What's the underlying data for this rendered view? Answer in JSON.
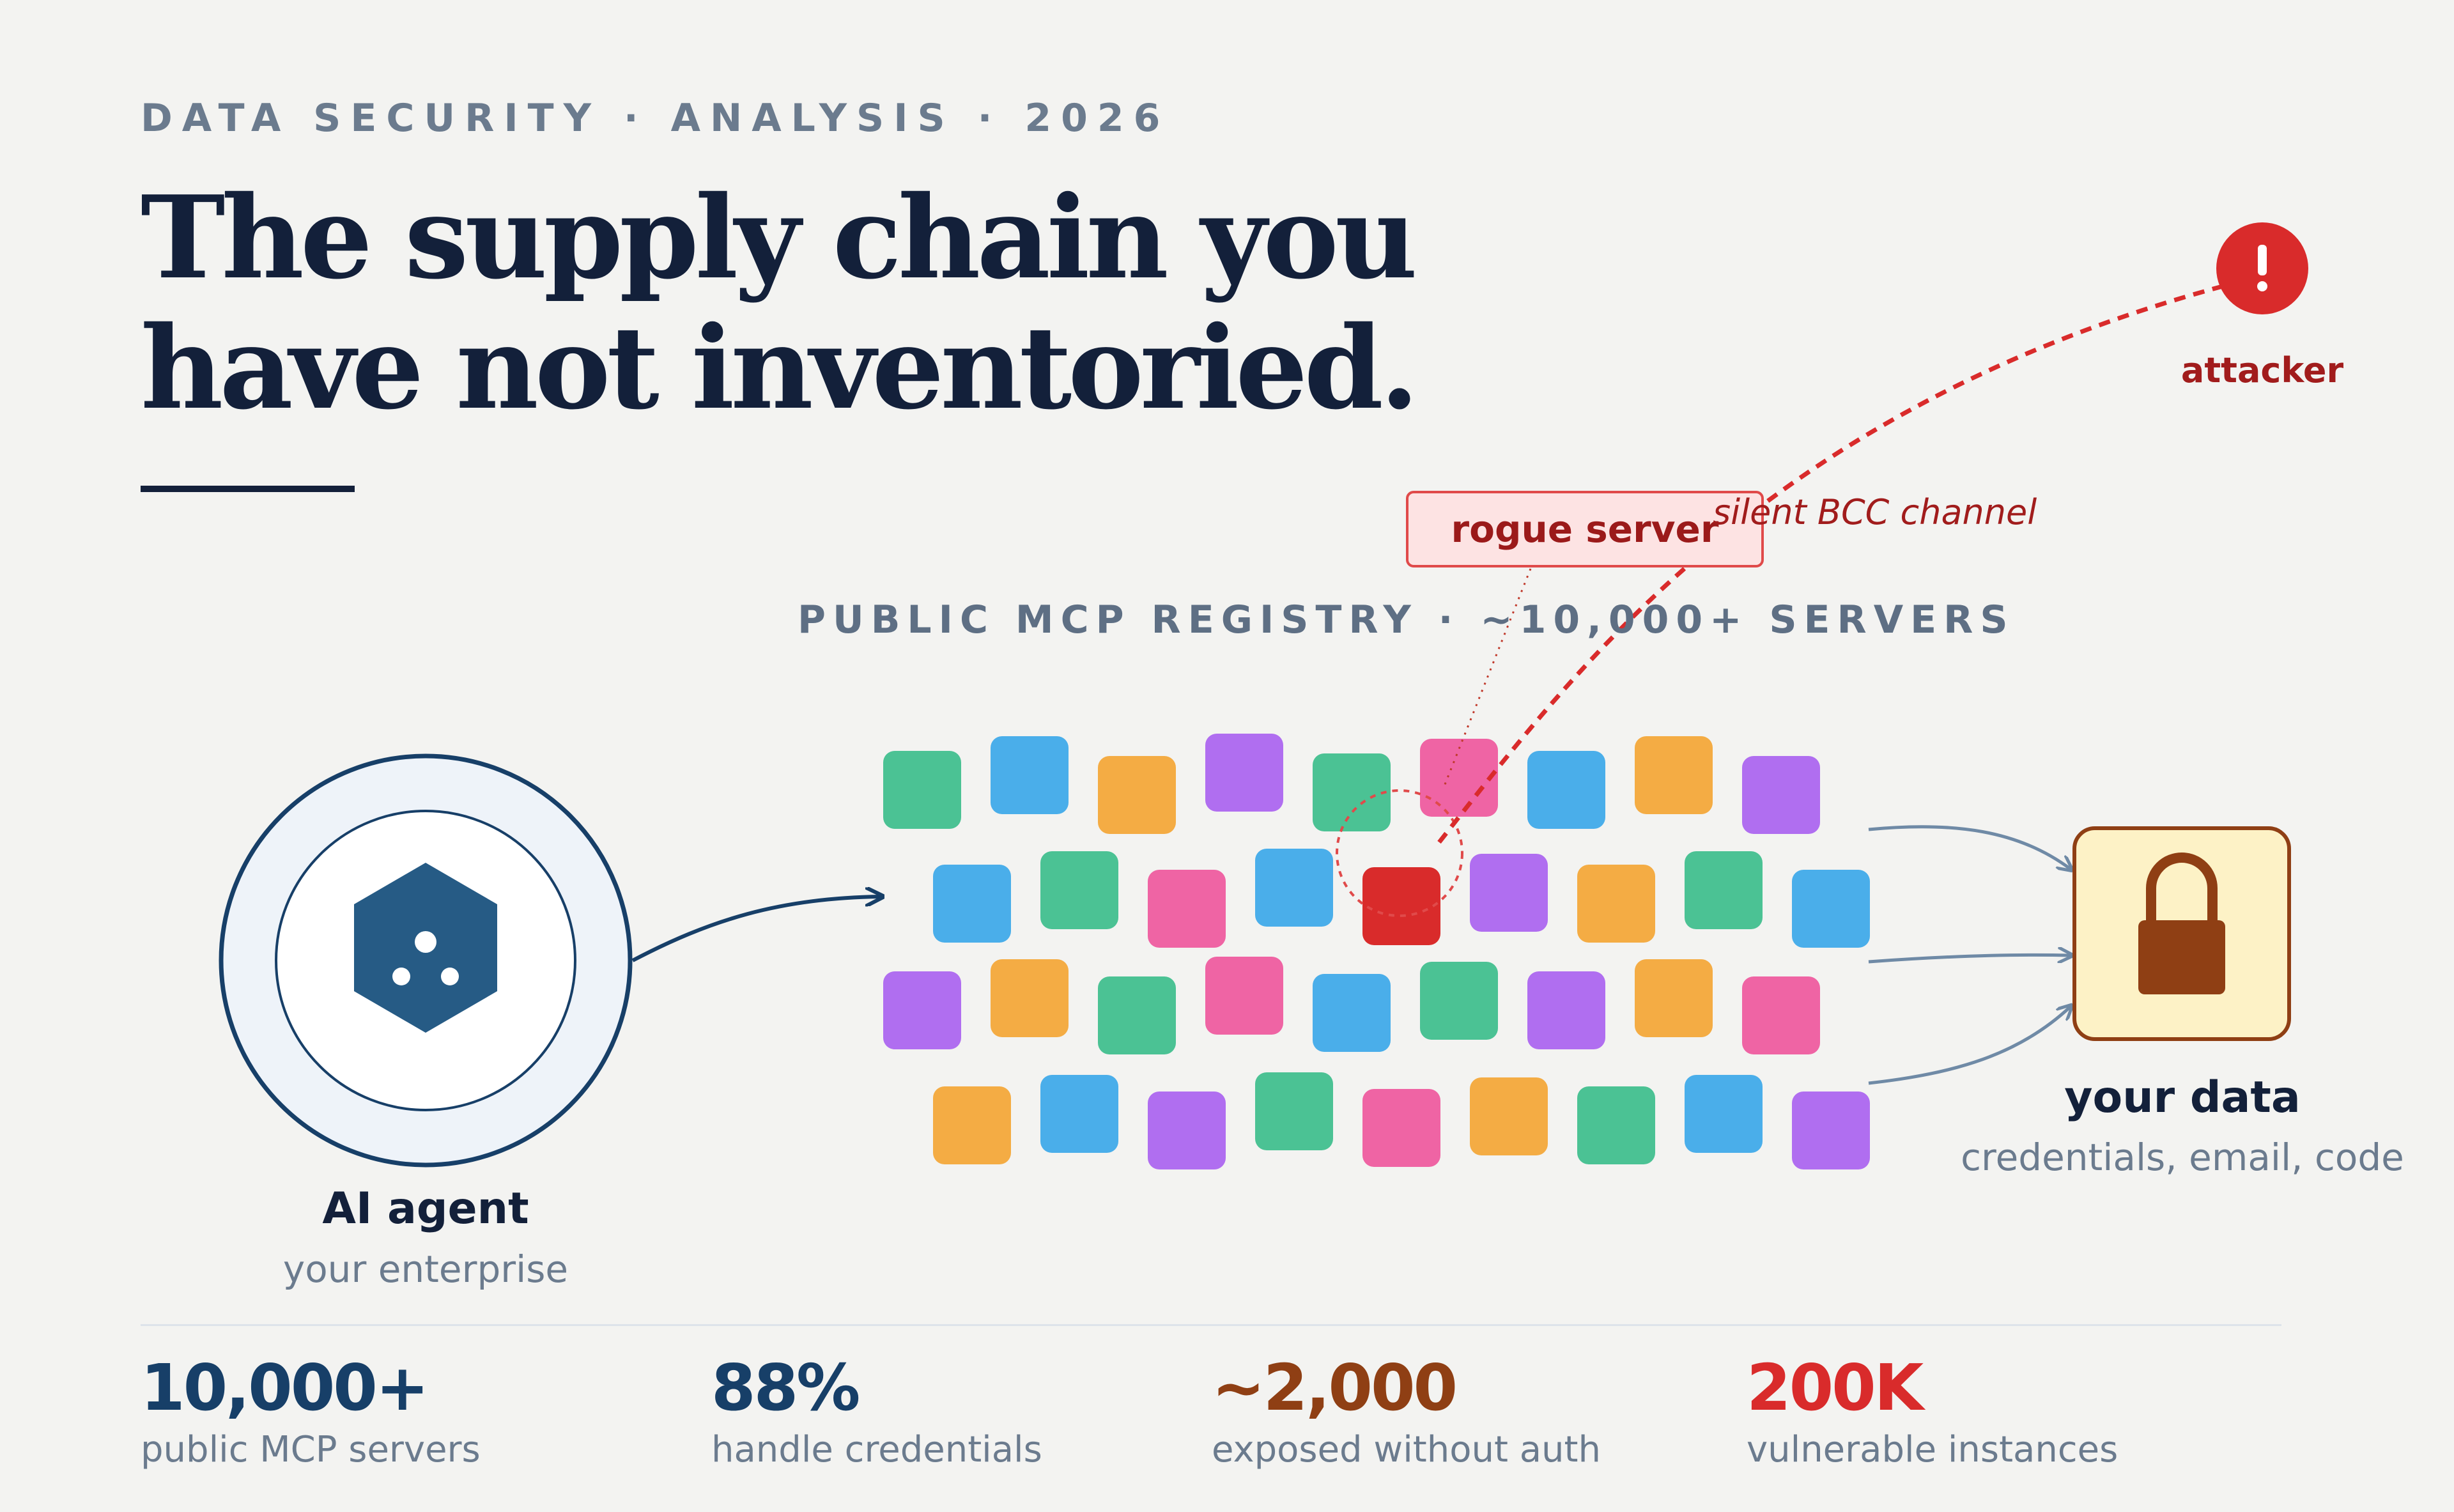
{
  "eyebrow": "DATA SECURITY · ANALYSIS · 2026",
  "headline": {
    "line1": "The supply chain you",
    "line2": "have not inventoried."
  },
  "registry": {
    "label": "PUBLIC MCP REGISTRY · ~10,000+ SERVERS",
    "tile_colors": [
      [
        "#4bc294",
        "#4aaeea",
        "#f4ac44",
        "#b06ef0",
        "#4bc294",
        "#ef64a4",
        "#4aaeea",
        "#f4ac44",
        "#b06ef0"
      ],
      [
        "#4aaeea",
        "#4bc294",
        "#ef64a4",
        "#4aaeea",
        "#d92b2b",
        "#b06ef0",
        "#f4ac44",
        "#4bc294",
        "#4aaeea"
      ],
      [
        "#b06ef0",
        "#f4ac44",
        "#4bc294",
        "#ef64a4",
        "#4aaeea",
        "#4bc294",
        "#b06ef0",
        "#f4ac44",
        "#ef64a4"
      ],
      [
        "#f4ac44",
        "#4aaeea",
        "#b06ef0",
        "#4bc294",
        "#ef64a4",
        "#f4ac44",
        "#4bc294",
        "#4aaeea",
        "#b06ef0"
      ]
    ]
  },
  "rogue": {
    "label": "rogue server",
    "channel_label": "silent BCC channel",
    "color": "#d92b2b"
  },
  "attacker": {
    "label": "attacker",
    "icon": "exclamation-icon",
    "color": "#d92b2b"
  },
  "agent": {
    "title": "AI agent",
    "subtitle": "your enterprise",
    "icon": "hexagon-agent-icon",
    "color": "#265b85"
  },
  "data_target": {
    "title": "your data",
    "subtitle": "credentials, email, code",
    "icon": "padlock-icon",
    "color": "#8f3f14"
  },
  "stats": [
    {
      "value": "10,000+",
      "label": "public MCP servers",
      "color": "#173f68"
    },
    {
      "value": "88%",
      "label": "handle credentials",
      "color": "#173f68"
    },
    {
      "value": "~2,000",
      "label": "exposed without auth",
      "color": "#8f3f14"
    },
    {
      "value": "200K",
      "label": "vulnerable instances",
      "color": "#d92b2b"
    }
  ]
}
